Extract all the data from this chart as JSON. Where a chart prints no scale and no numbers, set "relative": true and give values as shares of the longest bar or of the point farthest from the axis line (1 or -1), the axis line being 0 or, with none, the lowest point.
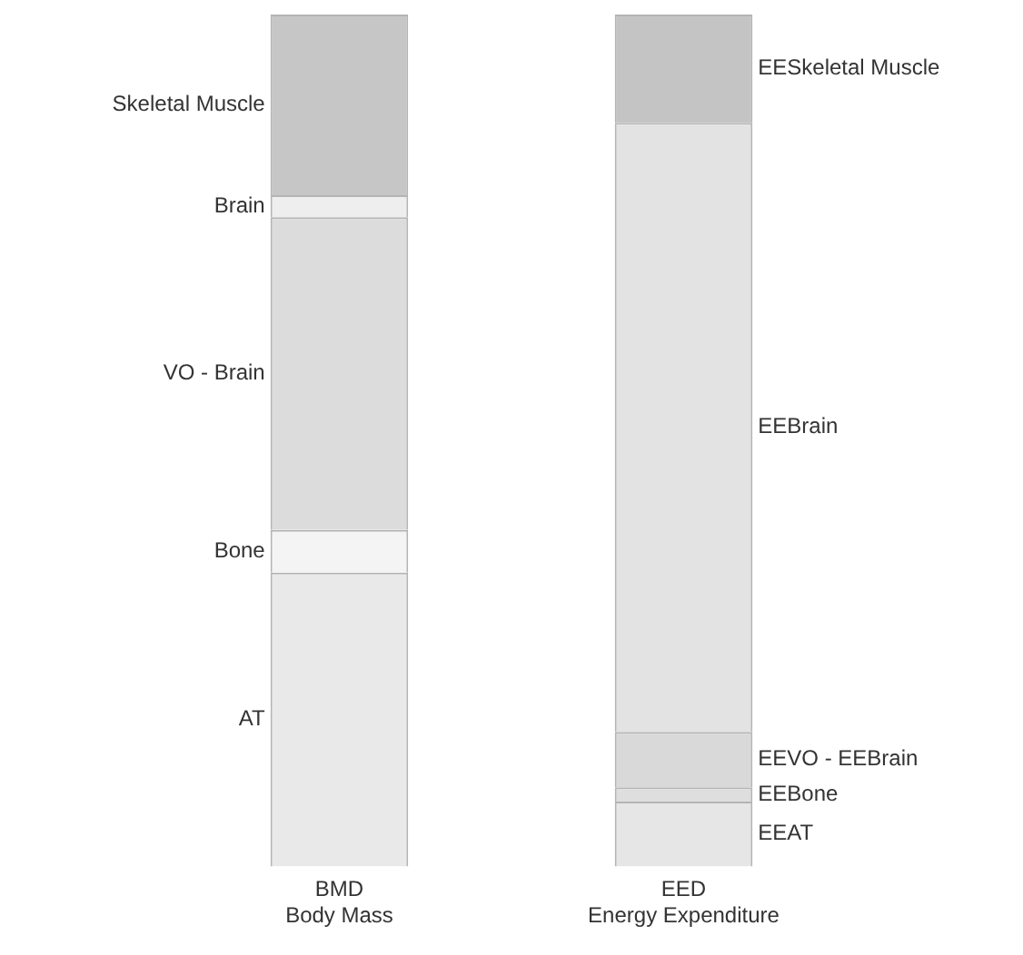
{
  "chart_data": {
    "type": "bar",
    "stacked": true,
    "relative": true,
    "categories": [
      "BMD\nBody Mass",
      "EED\nEnergy Expenditure"
    ],
    "series": [
      {
        "name": "AT",
        "color": "#e9e9e9",
        "values": [
          0.345,
          null
        ]
      },
      {
        "name": "Bone",
        "color": "#f4f4f4",
        "values": [
          0.05,
          null
        ]
      },
      {
        "name": "VO - Brain",
        "color": "#dcdcdc",
        "values": [
          0.367,
          null
        ]
      },
      {
        "name": "Brain",
        "color": "#eeeeee",
        "values": [
          0.026,
          null
        ]
      },
      {
        "name": "Skeletal Muscle",
        "color": "#c6c6c6",
        "values": [
          0.212,
          null
        ]
      },
      {
        "name": "EEAT",
        "color": "#e6e6e6",
        "values": [
          null,
          0.076
        ]
      },
      {
        "name": "EEBone",
        "color": "#dedede",
        "values": [
          null,
          0.017
        ]
      },
      {
        "name": "EEVO - EEBrain",
        "color": "#d9d9d9",
        "values": [
          null,
          0.065
        ]
      },
      {
        "name": "EEBrain",
        "color": "#e3e3e3",
        "values": [
          null,
          0.715
        ]
      },
      {
        "name": "EESkeletal Muscle",
        "color": "#c4c4c4",
        "values": [
          null,
          0.127
        ]
      }
    ],
    "grid": false,
    "legend": false
  }
}
